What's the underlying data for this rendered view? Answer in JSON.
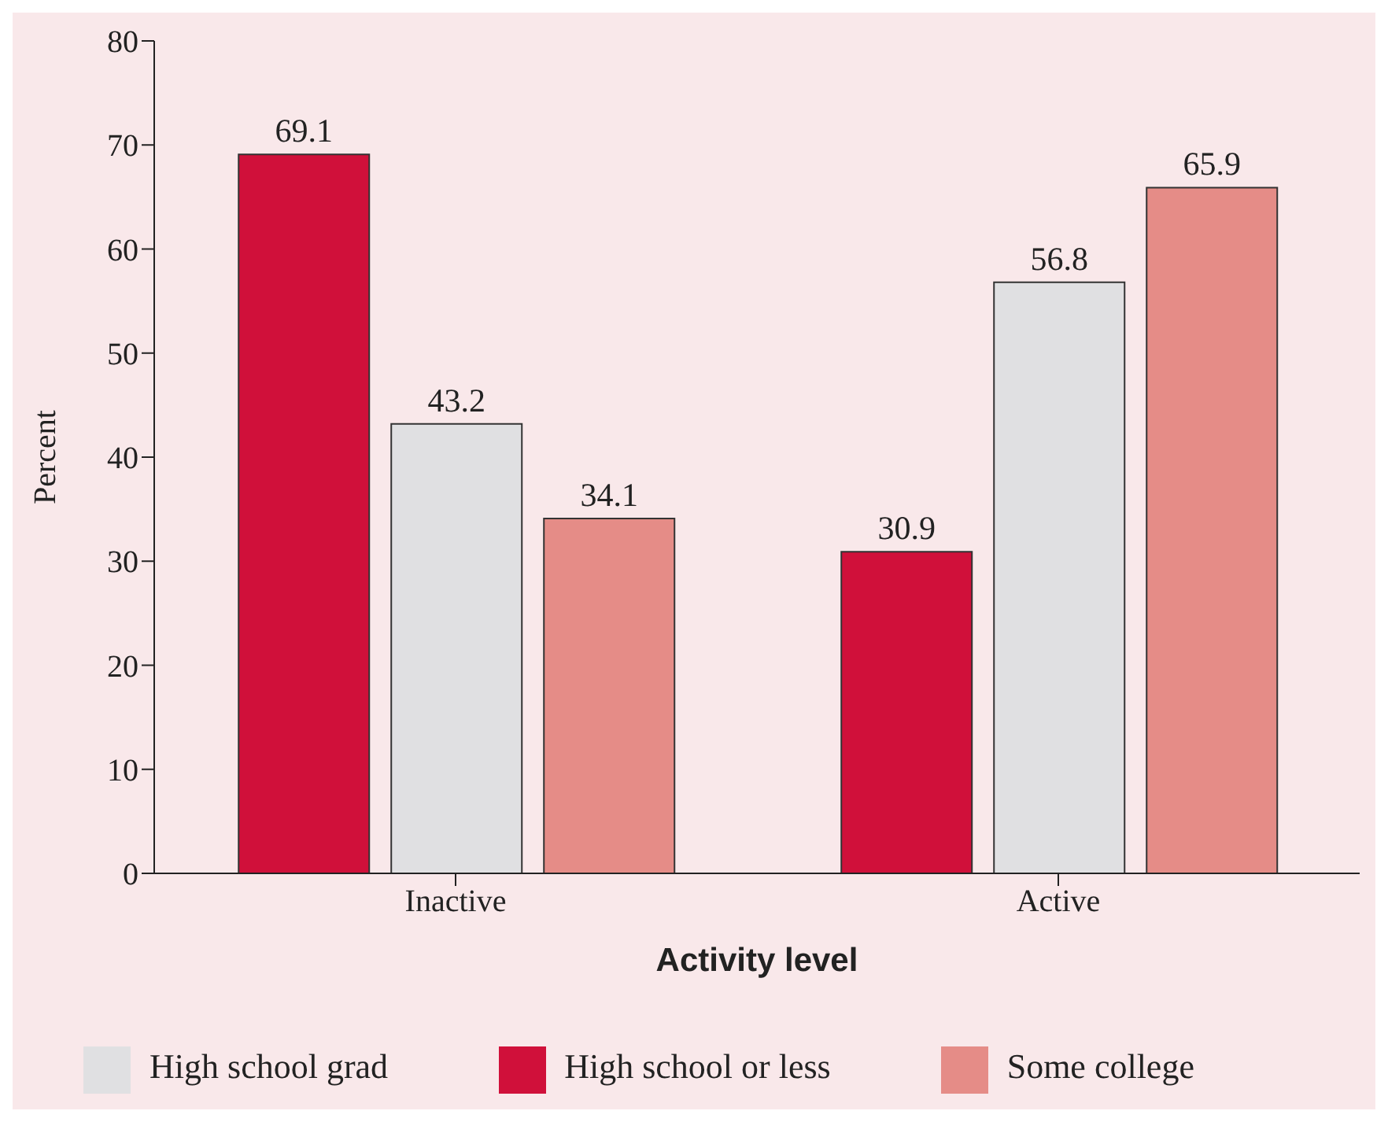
{
  "chart_data": {
    "type": "bar",
    "xlabel": "Activity level",
    "ylabel": "Percent",
    "categories": [
      "Inactive",
      "Active"
    ],
    "series": [
      {
        "name": "High school or less",
        "color": "#d0103a",
        "values": [
          69.1,
          30.9
        ]
      },
      {
        "name": "High school grad",
        "color": "#e0e0e2",
        "values": [
          43.2,
          56.8
        ]
      },
      {
        "name": "Some college",
        "color": "#e58c87",
        "values": [
          34.1,
          65.9
        ]
      }
    ],
    "ylim": [
      0,
      80
    ],
    "yticks": [
      0,
      10,
      20,
      30,
      40,
      50,
      60,
      70,
      80
    ],
    "data_labels": true,
    "legend": "bottom",
    "grid": false
  }
}
